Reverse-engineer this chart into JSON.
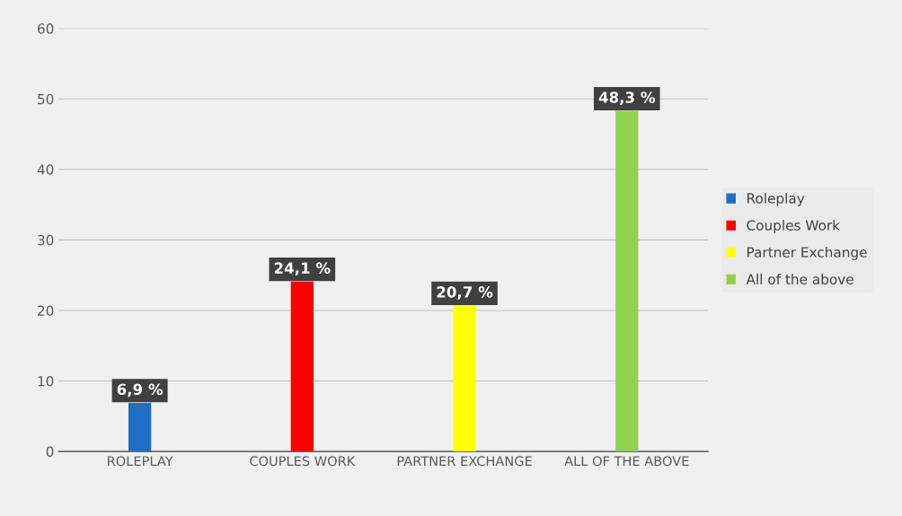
{
  "chart_data": {
    "type": "bar",
    "categories": [
      "ROLEPLAY",
      "COUPLES WORK",
      "PARTNER EXCHANGE",
      "ALL OF THE ABOVE"
    ],
    "series": [
      {
        "name": "Roleplay",
        "color": "#1f6fc5",
        "values": [
          6.9,
          null,
          null,
          null
        ],
        "value_labels": [
          "6,9 %",
          null,
          null,
          null
        ]
      },
      {
        "name": "Couples Work",
        "color": "#ff0000",
        "values": [
          null,
          24.1,
          null,
          null
        ],
        "value_labels": [
          null,
          "24,1 %",
          null,
          null
        ]
      },
      {
        "name": "Partner Exchange",
        "color": "#ffff00",
        "values": [
          null,
          null,
          20.7,
          null
        ],
        "value_labels": [
          null,
          null,
          "20,7 %",
          null
        ]
      },
      {
        "name": "All of the above",
        "color": "#92d050",
        "values": [
          null,
          null,
          null,
          48.3
        ],
        "value_labels": [
          null,
          null,
          null,
          "48,3 %"
        ]
      }
    ],
    "ylim": [
      0,
      60
    ],
    "yticks": [
      0,
      10,
      20,
      30,
      40,
      50,
      60
    ],
    "grid": "y",
    "legend": "right"
  }
}
